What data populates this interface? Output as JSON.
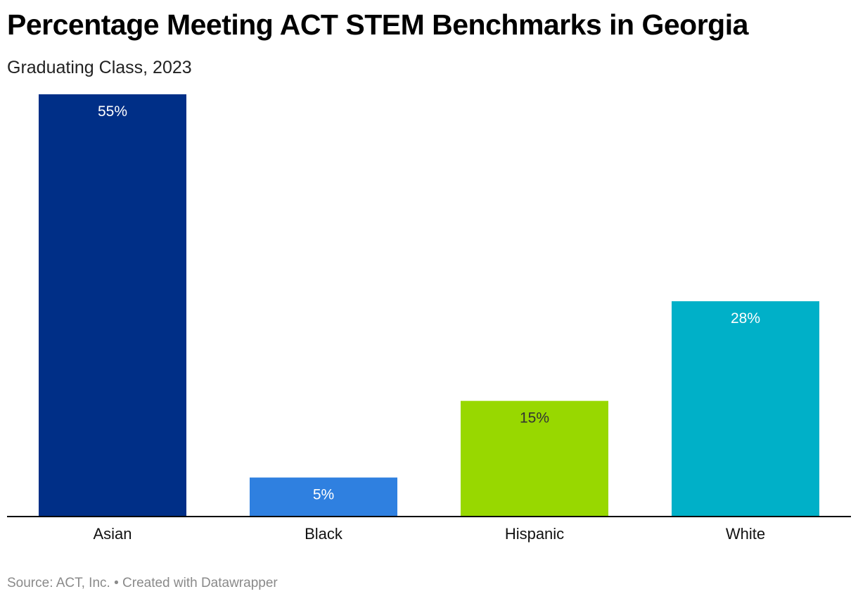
{
  "colors": {
    "Asian": "#002f87",
    "Black": "#2f80e0",
    "Hispanic": "#98d800",
    "White": "#00b0c8",
    "axis": "#000000",
    "label_light": "#ffffff",
    "label_dark": "#333333"
  },
  "chart_data": {
    "type": "bar",
    "title": "Percentage Meeting ACT STEM Benchmarks in Georgia",
    "subtitle": "Graduating Class, 2023",
    "xlabel": "",
    "ylabel": "",
    "categories": [
      "Asian",
      "Black",
      "Hispanic",
      "White"
    ],
    "values": [
      55,
      5,
      15,
      28
    ],
    "value_labels": [
      "55%",
      "5%",
      "15%",
      "28%"
    ],
    "ylim": [
      0,
      55
    ],
    "grid": false,
    "legend": "none"
  },
  "footer": {
    "source": "Source: ACT, Inc.",
    "separator": "•",
    "credit": "Created with Datawrapper"
  }
}
